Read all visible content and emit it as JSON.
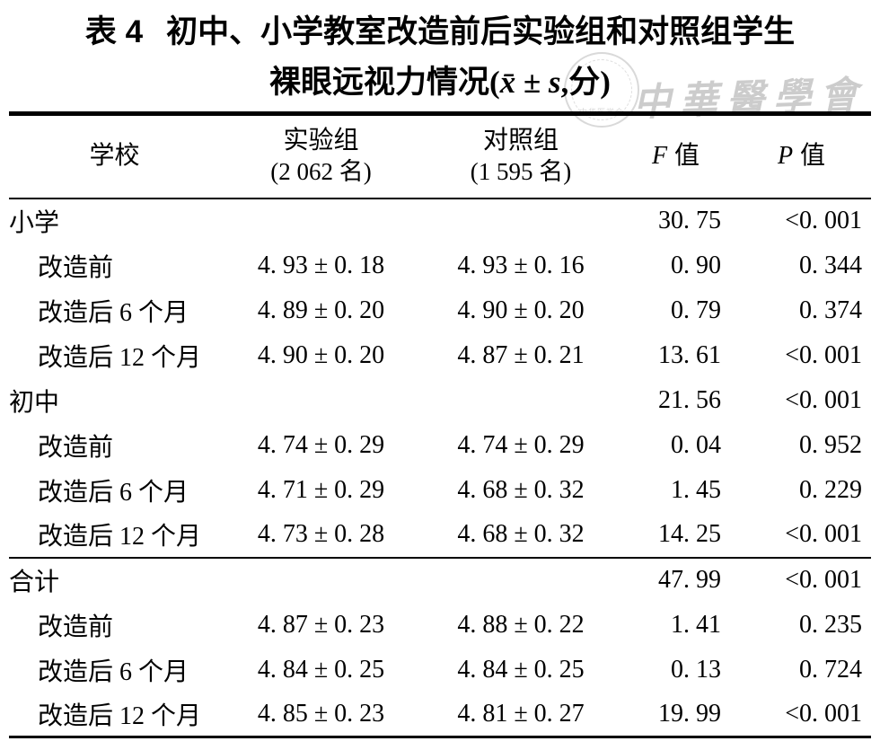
{
  "title": {
    "tag": "表 4",
    "line1": "初中、小学教室改造前后实验组和对照组学生",
    "line2_prefix": "裸眼远视力情况(",
    "line2_stat": "x̄ ± s",
    "line2_suffix": ",分)"
  },
  "watermark": {
    "script_text": "中華醫學會",
    "seal_text": "中华医学会",
    "color": "#cccccc"
  },
  "table": {
    "header": {
      "school": "学校",
      "experimental_line1": "实验组",
      "experimental_line2": "(2 062 名)",
      "control_line1": "对照组",
      "control_line2": "(1 595 名)",
      "f_symbol": "F",
      "f_label": "值",
      "p_symbol": "P",
      "p_label": "值"
    },
    "rows": [
      {
        "label": "小学",
        "experimental": "",
        "control": "",
        "f": "30. 75",
        "p": "<0. 001"
      },
      {
        "label": "改造前",
        "experimental": "4. 93 ± 0. 18",
        "control": "4. 93 ± 0. 16",
        "f": "0. 90",
        "p": "0. 344"
      },
      {
        "label": "改造后 6 个月",
        "experimental": "4. 89 ± 0. 20",
        "control": "4. 90 ± 0. 20",
        "f": "0. 79",
        "p": "0. 374"
      },
      {
        "label": "改造后 12 个月",
        "experimental": "4. 90 ± 0. 20",
        "control": "4. 87 ± 0. 21",
        "f": "13. 61",
        "p": "<0. 001"
      },
      {
        "label": "初中",
        "experimental": "",
        "control": "",
        "f": "21. 56",
        "p": "<0. 001"
      },
      {
        "label": "改造前",
        "experimental": "4. 74 ± 0. 29",
        "control": "4. 74 ± 0. 29",
        "f": "0. 04",
        "p": "0. 952"
      },
      {
        "label": "改造后 6 个月",
        "experimental": "4. 71 ± 0. 29",
        "control": "4. 68 ± 0. 32",
        "f": "1. 45",
        "p": "0. 229"
      },
      {
        "label": "改造后 12 个月",
        "experimental": "4. 73 ± 0. 28",
        "control": "4. 68 ± 0. 32",
        "f": "14. 25",
        "p": "<0. 001"
      },
      {
        "label": "合计",
        "experimental": "",
        "control": "",
        "f": "47. 99",
        "p": "<0. 001"
      },
      {
        "label": "改造前",
        "experimental": "4. 87 ± 0. 23",
        "control": "4. 88 ± 0. 22",
        "f": "1. 41",
        "p": "0. 235"
      },
      {
        "label": "改造后 6 个月",
        "experimental": "4. 84 ± 0. 25",
        "control": "4. 84 ± 0. 25",
        "f": "0. 13",
        "p": "0. 724"
      },
      {
        "label": "改造后 12 个月",
        "experimental": "4. 85 ± 0. 23",
        "control": "4. 81 ± 0. 27",
        "f": "19. 99",
        "p": "<0. 001"
      }
    ]
  }
}
